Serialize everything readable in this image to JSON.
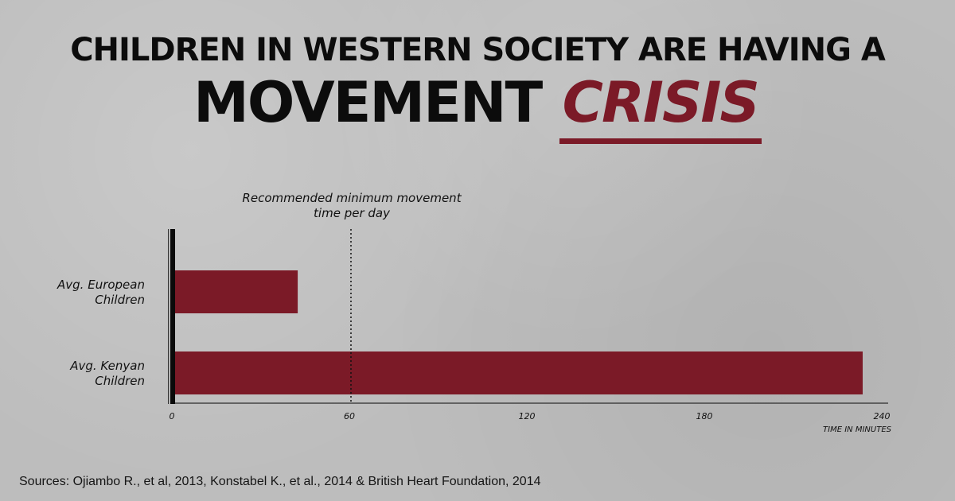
{
  "title": {
    "line1": "CHILDREN IN WESTERN SOCIETY ARE HAVING A",
    "line2_prefix": "MOVEMENT",
    "line2_highlight": "CRISIS"
  },
  "colors": {
    "bar": "#7b1a27",
    "accent": "#7b1a27",
    "axis": "#111111",
    "text": "#111111"
  },
  "chart_data": {
    "type": "bar",
    "orientation": "horizontal",
    "categories": [
      "Avg. European\nChildren",
      "Avg. Kenyan\nChildren"
    ],
    "values": [
      42,
      233
    ],
    "xlim": [
      0,
      240
    ],
    "xticks": [
      0,
      60,
      120,
      180,
      240
    ],
    "xlabel": "TIME IN MINUTES",
    "ylabel": "",
    "grid": false,
    "reference_line": {
      "value": 60,
      "label": "Recommended minimum movement\ntime per day",
      "style": "dotted"
    }
  },
  "sources": "Sources: Ojiambo R., et al, 2013, Konstabel K., et al., 2014 & British Heart Foundation, 2014"
}
